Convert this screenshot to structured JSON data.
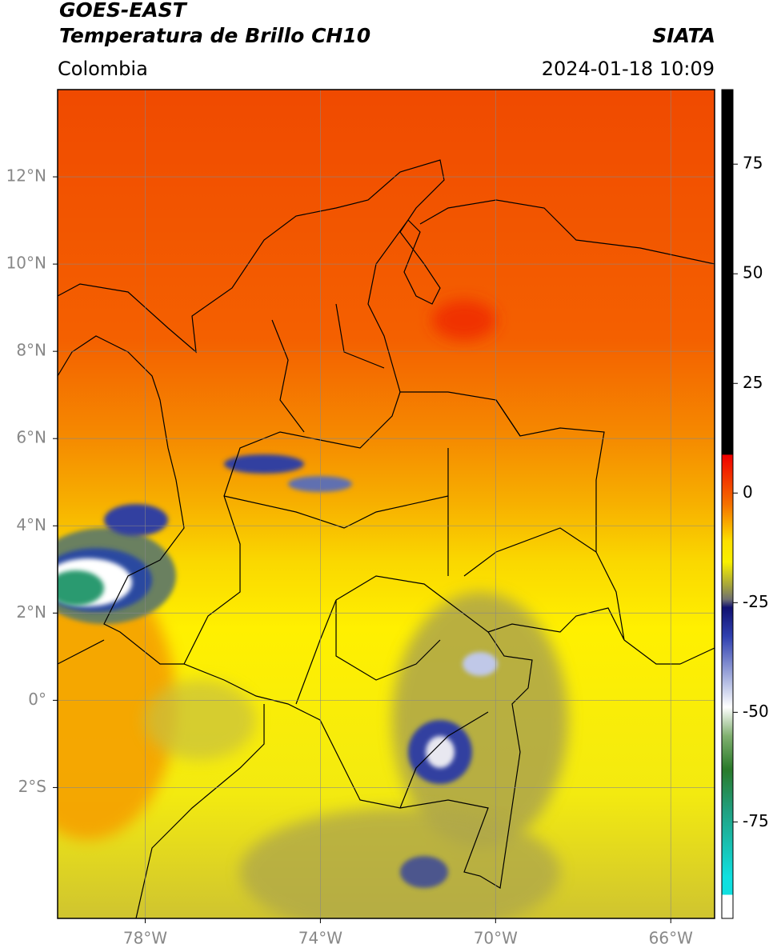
{
  "header": {
    "satellite": "GOES-EAST",
    "product": "Temperatura de Brillo CH10",
    "agency": "SIATA",
    "region": "Colombia",
    "datetime": "2024-01-18 10:09"
  },
  "map": {
    "xlim": [
      -80,
      -65
    ],
    "ylim": [
      -5,
      14
    ],
    "xticks": [
      {
        "value": -78,
        "label": "78°W"
      },
      {
        "value": -74,
        "label": "74°W"
      },
      {
        "value": -70,
        "label": "70°W"
      },
      {
        "value": -66,
        "label": "66°W"
      }
    ],
    "yticks": [
      {
        "value": 12,
        "label": "12°N"
      },
      {
        "value": 10,
        "label": "10°N"
      },
      {
        "value": 8,
        "label": "8°N"
      },
      {
        "value": 6,
        "label": "6°N"
      },
      {
        "value": 4,
        "label": "4°N"
      },
      {
        "value": 2,
        "label": "2°N"
      },
      {
        "value": 0,
        "label": "0°"
      },
      {
        "value": -2,
        "label": "2°S"
      }
    ],
    "grid": true
  },
  "colorbar": {
    "lim": [
      -97,
      92
    ],
    "ticks": [
      75,
      50,
      25,
      0,
      -25,
      -50,
      -75
    ]
  }
}
